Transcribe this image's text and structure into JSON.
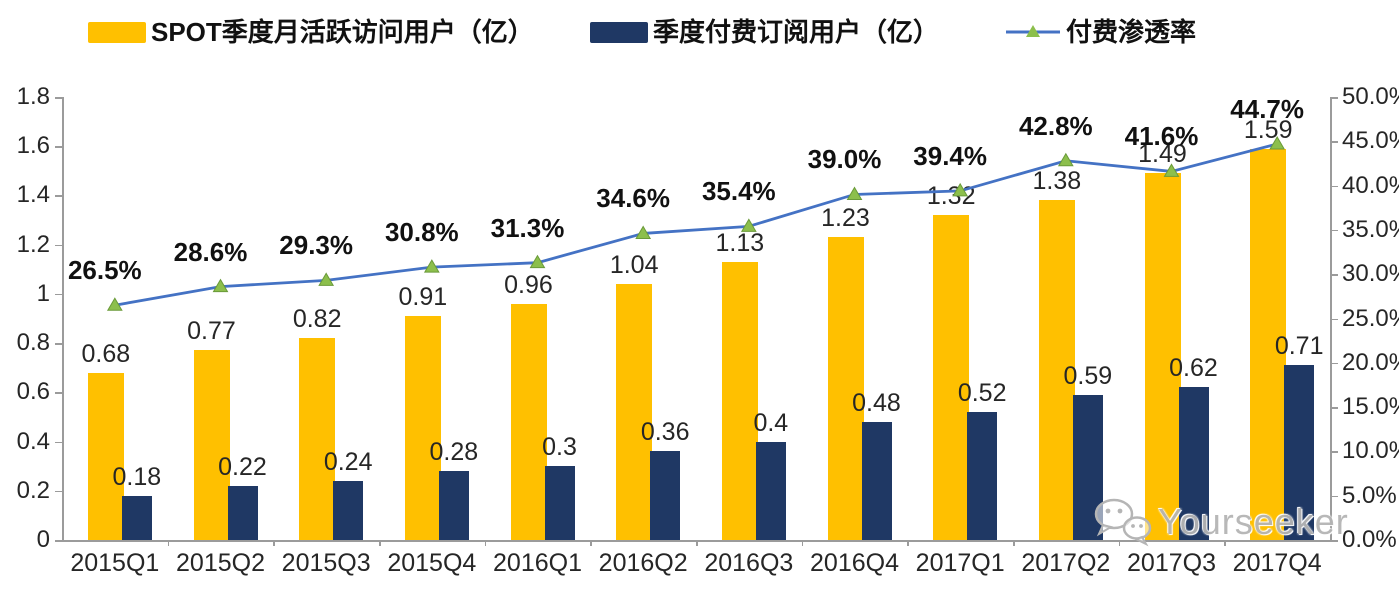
{
  "legend": [
    {
      "label": "SPOT季度月活跃访问用户（亿）",
      "color": "#FFC000",
      "type": "bar"
    },
    {
      "label": "季度付费订阅用户（亿）",
      "color": "#1F3864",
      "type": "bar"
    },
    {
      "label": "付费渗透率",
      "color": "#4472C4",
      "marker_color": "#8CBF4C",
      "marker_edge": "#6a9a39",
      "type": "line"
    }
  ],
  "chart_data": {
    "type": "bar",
    "subtype": "bars-with-line-overlay",
    "categories": [
      "2015Q1",
      "2015Q2",
      "2015Q3",
      "2015Q4",
      "2016Q1",
      "2016Q2",
      "2016Q3",
      "2016Q4",
      "2017Q1",
      "2017Q2",
      "2017Q3",
      "2017Q4"
    ],
    "series": [
      {
        "name": "SPOT季度月活跃访问用户（亿）",
        "type": "bar",
        "axis": "left",
        "color": "#FFC000",
        "values": [
          0.68,
          0.77,
          0.82,
          0.91,
          0.96,
          1.04,
          1.13,
          1.23,
          1.32,
          1.38,
          1.49,
          1.59
        ],
        "labels": [
          "0.68",
          "0.77",
          "0.82",
          "0.91",
          "0.96",
          "1.04",
          "1.13",
          "1.23",
          "1.32",
          "1.38",
          "1.49",
          "1.59"
        ]
      },
      {
        "name": "季度付费订阅用户（亿）",
        "type": "bar",
        "axis": "left",
        "color": "#1F3864",
        "values": [
          0.18,
          0.22,
          0.24,
          0.28,
          0.3,
          0.36,
          0.4,
          0.48,
          0.52,
          0.59,
          0.62,
          0.71
        ],
        "labels": [
          "0.18",
          "0.22",
          "0.24",
          "0.28",
          "0.3",
          "0.36",
          "0.4",
          "0.48",
          "0.52",
          "0.59",
          "0.62",
          "0.71"
        ]
      },
      {
        "name": "付费渗透率",
        "type": "line",
        "axis": "right",
        "color": "#4472C4",
        "marker": "triangle",
        "marker_color": "#8CBF4C",
        "marker_edge": "#6a9a39",
        "values": [
          26.5,
          28.6,
          29.3,
          30.8,
          31.3,
          34.6,
          35.4,
          39.0,
          39.4,
          42.8,
          41.6,
          44.7
        ],
        "labels": [
          "26.5%",
          "28.6%",
          "29.3%",
          "30.8%",
          "31.3%",
          "34.6%",
          "35.4%",
          "39.0%",
          "39.4%",
          "42.8%",
          "41.6%",
          "44.7%"
        ]
      }
    ],
    "left_axis": {
      "min": 0,
      "max": 1.8,
      "ticks": [
        "0",
        "0.2",
        "0.4",
        "0.6",
        "0.8",
        "1",
        "1.2",
        "1.4",
        "1.6",
        "1.8"
      ],
      "tick_values": [
        0,
        0.2,
        0.4,
        0.6,
        0.8,
        1,
        1.2,
        1.4,
        1.6,
        1.8
      ]
    },
    "right_axis": {
      "min": 0,
      "max": 50,
      "ticks": [
        "0.0%",
        "5.0%",
        "10.0%",
        "15.0%",
        "20.0%",
        "25.0%",
        "30.0%",
        "35.0%",
        "40.0%",
        "45.0%",
        "50.0%"
      ],
      "tick_values": [
        0,
        5,
        10,
        15,
        20,
        25,
        30,
        35,
        40,
        45,
        50
      ]
    },
    "grid": false,
    "legend_position": "top",
    "title": "",
    "xlabel": "",
    "ylabel_left": "",
    "ylabel_right": ""
  },
  "watermark": {
    "text": "Yourseeker",
    "icon": "wechat-icon"
  }
}
